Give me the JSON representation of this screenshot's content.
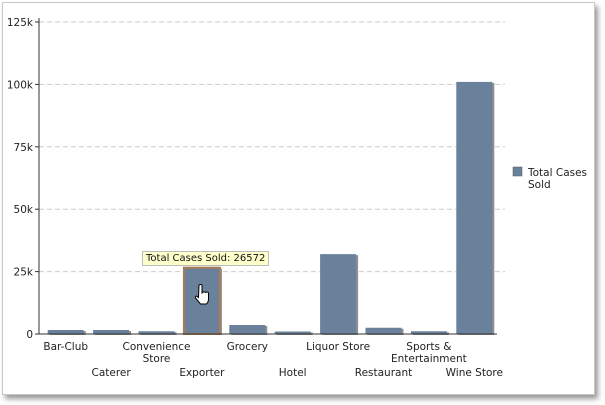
{
  "chart_data": {
    "type": "bar",
    "title": "",
    "xlabel": "",
    "ylabel": "",
    "categories": [
      "Bar-Club",
      "Caterer",
      "Convenience Store",
      "Exporter",
      "Grocery",
      "Hotel",
      "Liquor Store",
      "Restaurant",
      "Sports & Entertainment",
      "Wine Store"
    ],
    "category_lines": [
      [
        "Bar-Club"
      ],
      [
        "Caterer"
      ],
      [
        "Convenience",
        "Store"
      ],
      [
        "Exporter"
      ],
      [
        "Grocery"
      ],
      [
        "Hotel"
      ],
      [
        "Liquor Store"
      ],
      [
        "Restaurant"
      ],
      [
        "Sports &",
        "Entertainment"
      ],
      [
        "Wine Store"
      ]
    ],
    "series": [
      {
        "name": "Total Cases Sold",
        "values": [
          1600,
          1600,
          1100,
          26572,
          3600,
          1000,
          32000,
          2500,
          1100,
          101000
        ],
        "color": "#6a819c"
      }
    ],
    "ylim": [
      0,
      125000
    ],
    "yticks": [
      0,
      25000,
      50000,
      75000,
      100000,
      125000
    ],
    "ytick_labels": [
      "0",
      "25k",
      "50k",
      "75k",
      "100k",
      "125k"
    ],
    "grid": true,
    "legend": {
      "placement": "right",
      "entries": [
        "Total Cases",
        "Sold"
      ]
    },
    "highlight_index": 3,
    "highlight_color": "#a87c55"
  },
  "tooltip": {
    "text": "Total Cases Sold: 26572"
  }
}
